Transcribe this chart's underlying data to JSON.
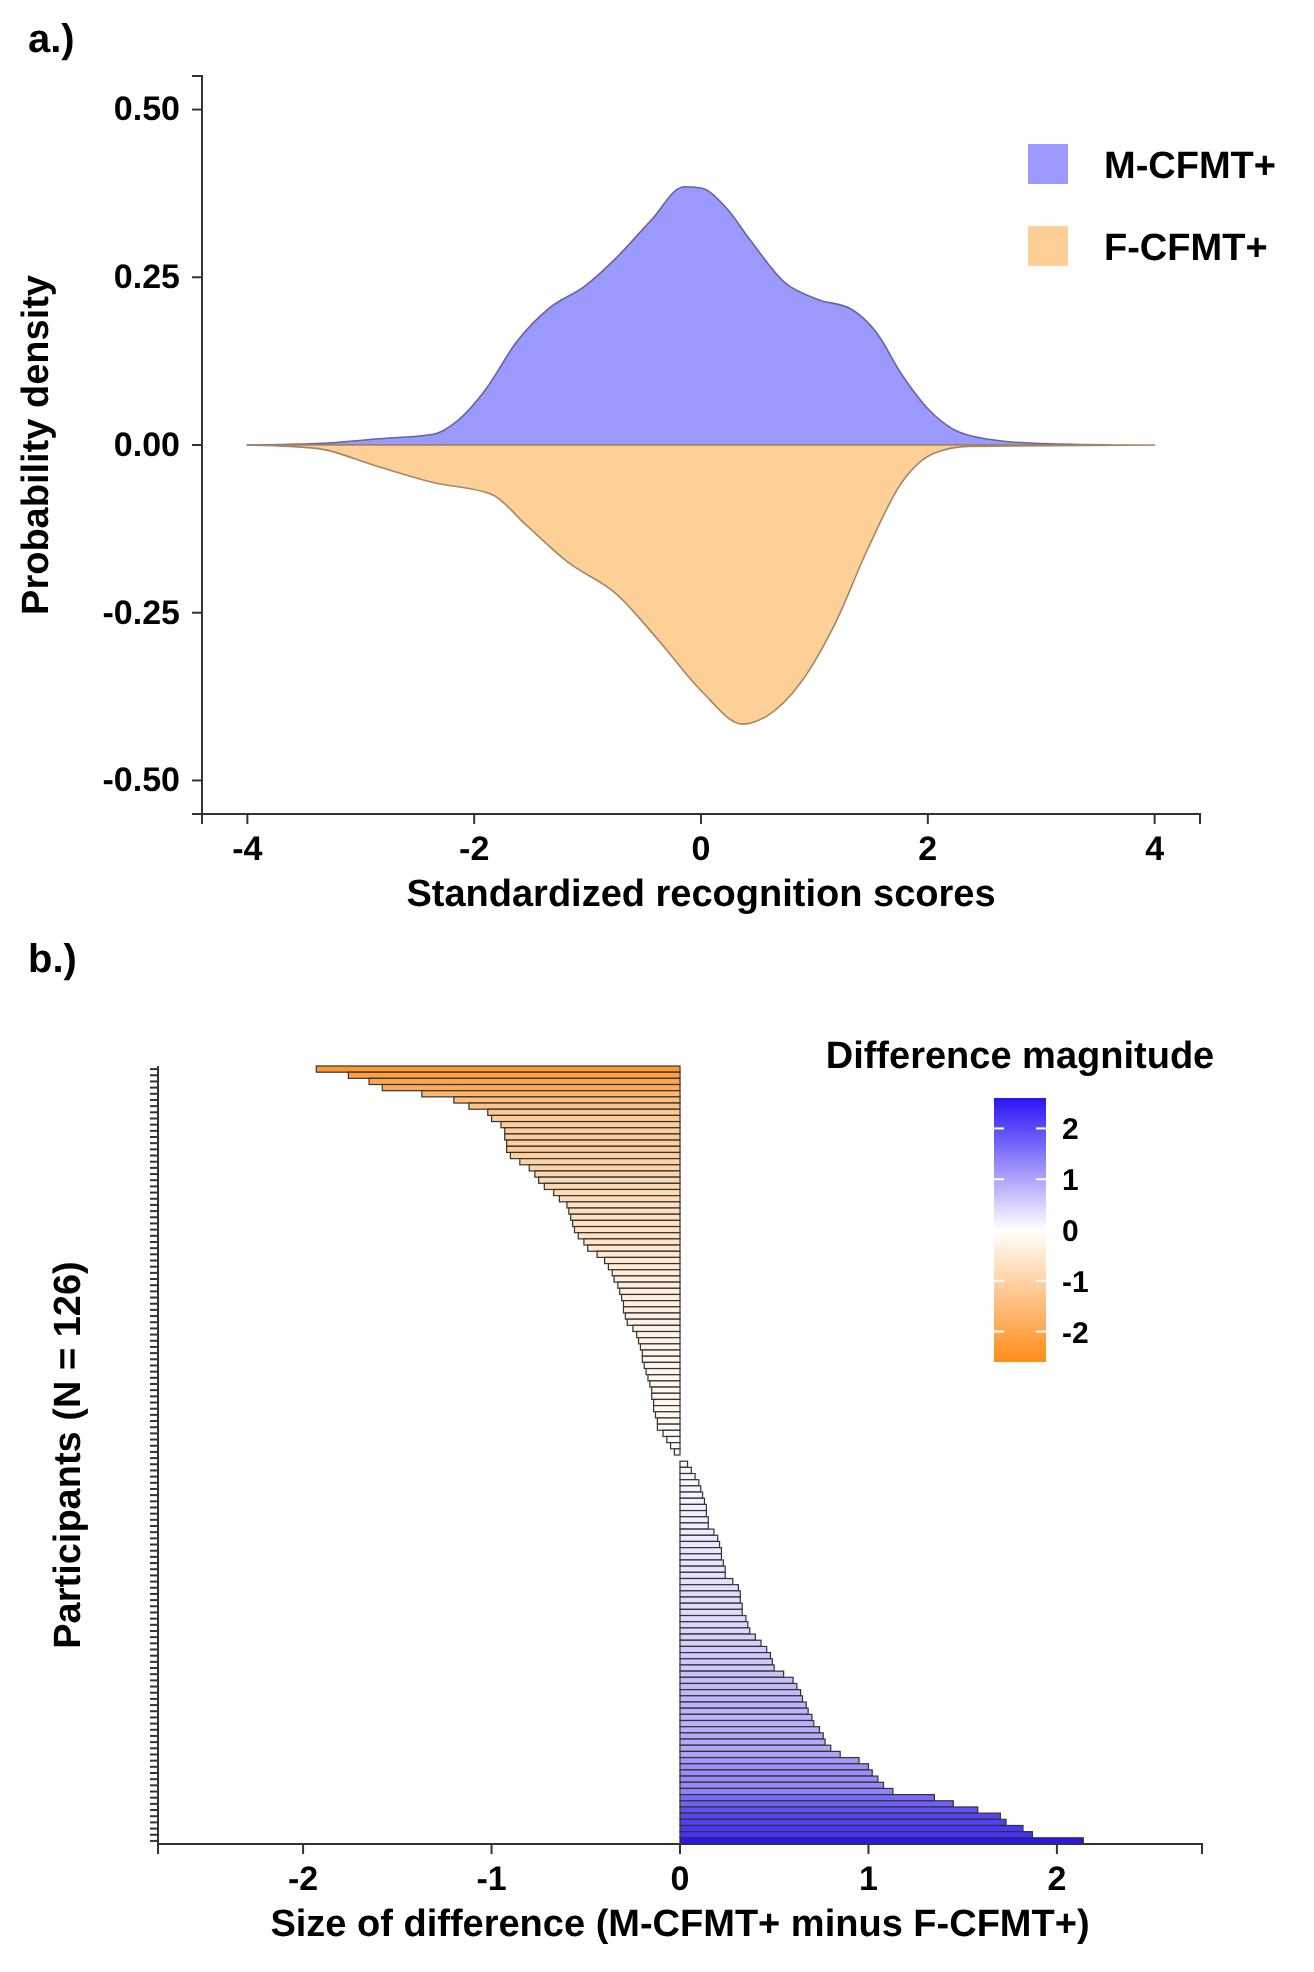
{
  "chart_data": [
    {
      "type": "area",
      "title": "a.)",
      "xlabel": "Standardized recognition scores",
      "ylabel": "Probability density",
      "xlim": [
        -4.4,
        4.4
      ],
      "xticks": [
        -4,
        -2,
        0,
        2,
        4
      ],
      "ylim": [
        -0.55,
        0.55
      ],
      "yticks": [
        {
          "value": -0.5,
          "label": "-0.50"
        },
        {
          "value": -0.25,
          "label": "-0.25"
        },
        {
          "value": 0,
          "label": "0.00"
        },
        {
          "value": 0.25,
          "label": "0.25"
        },
        {
          "value": 0.5,
          "label": "0.50"
        }
      ],
      "legend": "top right",
      "grid": false,
      "series": [
        {
          "name": "M-CFMT+",
          "color": "#9b99fb",
          "x": [
            -4,
            -3.39,
            -2.87,
            -2.36,
            -2.14,
            -1.91,
            -1.62,
            -1.33,
            -1.03,
            -0.74,
            -0.44,
            -0.15,
            0,
            0.22,
            0.44,
            0.74,
            1.03,
            1.33,
            1.55,
            1.77,
            1.99,
            2.28,
            2.65,
            3.02,
            3.61
          ],
          "values": [
            0,
            0.002,
            0.009,
            0.016,
            0.037,
            0.08,
            0.155,
            0.205,
            0.236,
            0.28,
            0.335,
            0.385,
            0.383,
            0.354,
            0.304,
            0.242,
            0.217,
            0.202,
            0.167,
            0.105,
            0.056,
            0.019,
            0.006,
            0.002,
            0
          ]
        },
        {
          "name": "F-CFMT+",
          "color": "#fdd098",
          "x": [
            -4,
            -3.39,
            -2.87,
            -2.36,
            -1.84,
            -1.55,
            -1.18,
            -0.74,
            -0.37,
            0,
            0.37,
            0.59,
            0.88,
            1.18,
            1.47,
            1.77,
            2.06,
            2.36,
            4
          ],
          "values": [
            0,
            -0.005,
            -0.031,
            -0.056,
            -0.074,
            -0.118,
            -0.174,
            -0.223,
            -0.292,
            -0.366,
            -0.416,
            -0.403,
            -0.354,
            -0.267,
            -0.155,
            -0.056,
            -0.012,
            -0.002,
            0
          ]
        }
      ]
    },
    {
      "type": "bar",
      "orientation": "horizontal",
      "title": "b.)",
      "xlabel": "Size of difference (M-CFMT+ minus F-CFMT+)",
      "ylabel": "Participants (N = 126)",
      "clabel": "Difference magnitude",
      "xlim": [
        -2.77,
        2.77
      ],
      "xticks": [
        -2,
        -1,
        0,
        1,
        2
      ],
      "annotations": [
        "2",
        "1",
        "0",
        "-1",
        "-2"
      ],
      "tick_labels": "x",
      "categories": [
        null,
        null,
        null,
        null,
        null,
        null,
        null,
        null,
        null,
        null,
        null,
        null,
        null,
        null,
        null,
        null,
        null,
        null,
        null,
        null,
        null,
        null,
        null,
        null,
        null,
        null,
        null,
        null,
        null,
        null,
        null,
        null,
        null,
        null,
        null,
        null,
        null,
        null,
        null,
        null,
        null,
        null,
        null,
        null,
        null,
        null,
        null,
        null,
        null,
        null,
        null,
        null,
        null,
        null,
        null,
        null,
        null,
        null,
        null,
        null,
        null,
        null,
        null,
        null,
        null,
        null,
        null,
        null,
        null,
        null,
        null,
        null,
        null,
        null,
        null,
        null,
        null,
        null,
        null,
        null,
        null,
        null,
        null,
        null,
        null,
        null,
        null,
        null,
        null,
        null,
        null,
        null,
        null,
        null,
        null,
        null,
        null,
        null,
        null,
        null,
        null,
        null,
        null,
        null,
        null,
        null,
        null,
        null,
        null,
        null,
        null,
        null,
        null,
        null,
        null,
        null,
        null,
        null,
        null,
        null,
        null,
        null,
        null,
        null,
        null,
        null
      ],
      "values": [
        -1.93,
        -1.76,
        -1.65,
        -1.58,
        -1.37,
        -1.2,
        -1.12,
        -1.02,
        -1,
        -0.95,
        -0.93,
        -0.93,
        -0.92,
        -0.92,
        -0.9,
        -0.85,
        -0.8,
        -0.77,
        -0.75,
        -0.72,
        -0.67,
        -0.64,
        -0.6,
        -0.59,
        -0.58,
        -0.57,
        -0.56,
        -0.54,
        -0.51,
        -0.49,
        -0.44,
        -0.4,
        -0.38,
        -0.36,
        -0.35,
        -0.33,
        -0.32,
        -0.31,
        -0.3,
        -0.3,
        -0.29,
        -0.28,
        -0.25,
        -0.23,
        -0.22,
        -0.21,
        -0.2,
        -0.2,
        -0.19,
        -0.18,
        -0.17,
        -0.16,
        -0.15,
        -0.15,
        -0.14,
        -0.14,
        -0.13,
        -0.12,
        -0.12,
        -0.09,
        -0.07,
        -0.05,
        -0.03,
        null,
        0.04,
        0.06,
        0.08,
        0.1,
        0.11,
        0.12,
        0.13,
        0.14,
        0.14,
        0.15,
        0.15,
        0.18,
        0.2,
        0.21,
        0.22,
        0.22,
        0.23,
        0.24,
        0.24,
        0.28,
        0.31,
        0.32,
        0.32,
        0.33,
        0.33,
        0.35,
        0.36,
        0.37,
        0.4,
        0.43,
        0.46,
        0.48,
        0.49,
        0.5,
        0.55,
        0.6,
        0.62,
        0.64,
        0.65,
        0.67,
        0.68,
        0.7,
        0.71,
        0.74,
        0.76,
        0.77,
        0.8,
        0.85,
        0.95,
        1,
        1.02,
        1.05,
        1.08,
        1.13,
        1.35,
        1.45,
        1.58,
        1.7,
        1.73,
        1.82,
        1.87,
        2.14
      ]
    }
  ]
}
